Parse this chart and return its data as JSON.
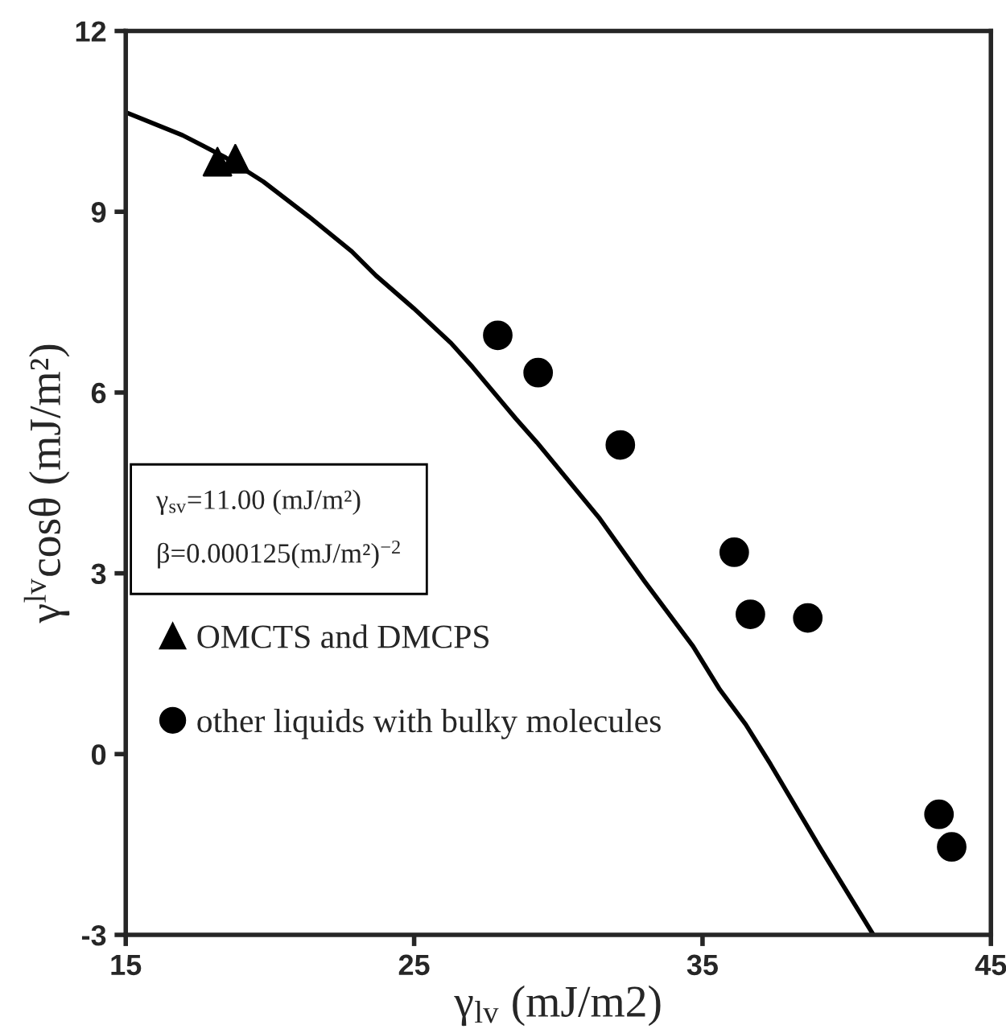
{
  "chart_data": {
    "type": "scatter",
    "xlabel": "γ$_{lv}$ (mJ/m2)",
    "ylabel": "γ$^{lv}$cosθ (mJ/m²)",
    "xlim": [
      15,
      45
    ],
    "xticks": [
      15,
      25,
      35,
      45
    ],
    "ylim": [
      -3,
      12
    ],
    "yticks": [
      -3,
      0,
      3,
      6,
      9,
      12
    ],
    "grid": false,
    "legend": "left",
    "annotations": [
      "γ$_{sv}$=11.00 (mJ/m²)",
      "β=0.000125(mJ/m²)$^{−2}$"
    ],
    "series": [
      {
        "type": "line",
        "color": "#000000",
        "marker": "none",
        "line_style": "solid",
        "x": [
          15,
          16.97,
          18.46,
          19.77,
          21.35,
          22.84,
          23.68,
          24.98,
          26.28,
          27.03,
          28.52,
          29.26,
          31.4,
          33.0,
          34.67,
          35.6,
          36.5,
          37.36,
          39.13,
          40.9
        ],
        "values": [
          10.65,
          10.27,
          9.9,
          9.5,
          8.92,
          8.34,
          7.94,
          7.4,
          6.82,
          6.42,
          5.57,
          5.17,
          3.93,
          2.86,
          1.79,
          1.07,
          0.49,
          -0.17,
          -1.6,
          -2.98
        ]
      },
      {
        "name": "OMCTS and DMCPS",
        "color": "#000000",
        "marker": "triangle",
        "x": [
          18.18,
          18.8
        ],
        "values": [
          9.83,
          9.88
        ]
      },
      {
        "name": "other liquids with bulky molecules",
        "color": "#000000",
        "marker": "circle",
        "x": [
          27.9,
          29.3,
          32.15,
          36.1,
          36.66,
          38.65,
          43.2,
          43.64
        ],
        "values": [
          6.95,
          6.33,
          5.13,
          3.35,
          2.32,
          2.26,
          -1.0,
          -1.54
        ]
      }
    ]
  }
}
